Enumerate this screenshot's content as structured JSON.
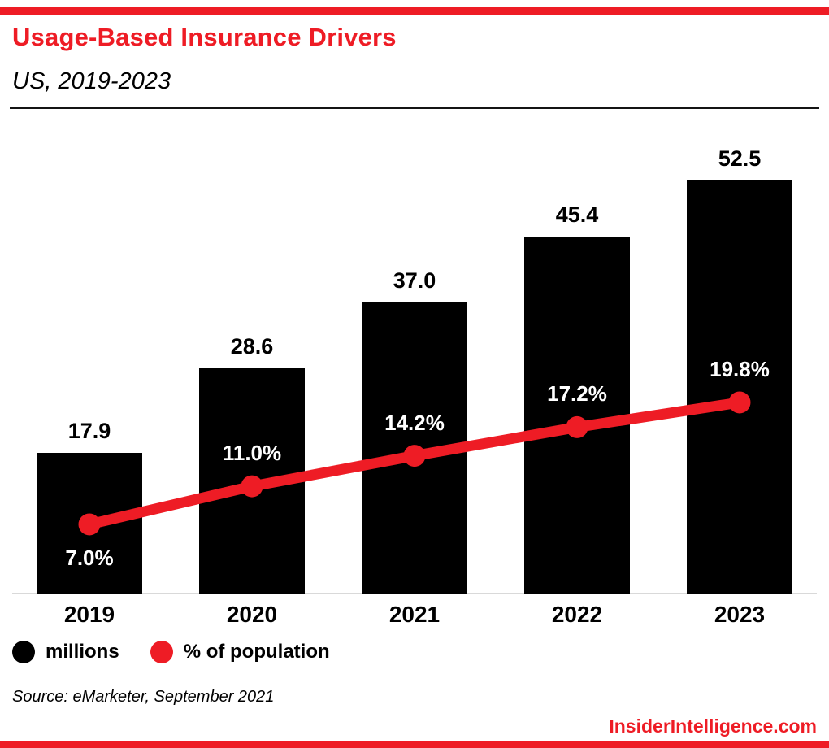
{
  "header": {
    "title": "Usage-Based Insurance Drivers",
    "subtitle": "US, 2019-2023"
  },
  "chart_data": {
    "type": "bar+line",
    "title": "Usage-Based Insurance Drivers",
    "subtitle": "US, 2019-2023",
    "categories": [
      "2019",
      "2020",
      "2021",
      "2022",
      "2023"
    ],
    "series": [
      {
        "name": "millions",
        "type": "bar",
        "color": "#000000",
        "values": [
          17.9,
          28.6,
          37.0,
          45.4,
          52.5
        ],
        "labels": [
          "17.9",
          "28.6",
          "37.0",
          "45.4",
          "52.5"
        ]
      },
      {
        "name": "% of population",
        "type": "line",
        "color": "#ee1c25",
        "values": [
          7.0,
          11.0,
          14.2,
          17.2,
          19.8
        ],
        "labels": [
          "7.0%",
          "11.0%",
          "14.2%",
          "17.2%",
          "19.8%"
        ]
      }
    ],
    "xlabel": "",
    "ylabel": "",
    "y1_range": [
      0,
      55
    ],
    "y2_range": [
      0,
      62
    ],
    "grid": false,
    "legend_position": "bottom",
    "data_labels": true
  },
  "legend": {
    "items": [
      {
        "label": "millions",
        "color": "#000000"
      },
      {
        "label": "% of population",
        "color": "#ee1c25"
      }
    ]
  },
  "footer": {
    "source": "Source: eMarketer, September 2021",
    "brand": "InsiderIntelligence.com"
  },
  "colors": {
    "accent_red": "#ee1c25",
    "bar_black": "#000000",
    "background": "#ffffff"
  }
}
